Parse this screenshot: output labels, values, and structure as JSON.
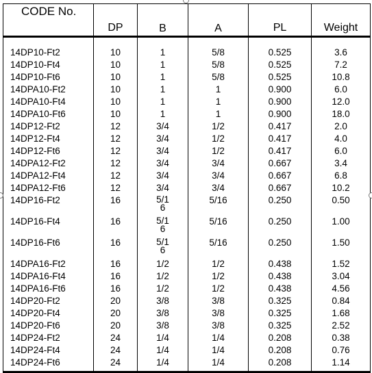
{
  "headers": {
    "code": "CODE No.",
    "dp": "DP",
    "b": "B",
    "a": "A",
    "pl": "PL",
    "weight": "Weight"
  },
  "rows": [
    {
      "code": "14DP10-Ft2",
      "dp": "10",
      "b": "1",
      "a": "5/8",
      "pl": "0.525",
      "weight": "3.6"
    },
    {
      "code": "14DP10-Ft4",
      "dp": "10",
      "b": "1",
      "a": "5/8",
      "pl": "0.525",
      "weight": "7.2"
    },
    {
      "code": "14DP10-Ft6",
      "dp": "10",
      "b": "1",
      "a": "5/8",
      "pl": "0.525",
      "weight": "10.8"
    },
    {
      "code": "14DPA10-Ft2",
      "dp": "10",
      "b": "1",
      "a": "1",
      "pl": "0.900",
      "weight": "6.0"
    },
    {
      "code": "14DPA10-Ft4",
      "dp": "10",
      "b": "1",
      "a": "1",
      "pl": "0.900",
      "weight": "12.0"
    },
    {
      "code": "14DPA10-Ft6",
      "dp": "10",
      "b": "1",
      "a": "1",
      "pl": "0.900",
      "weight": "18.0"
    },
    {
      "code": "14DP12-Ft2",
      "dp": "12",
      "b": "3/4",
      "a": "1/2",
      "pl": "0.417",
      "weight": "2.0"
    },
    {
      "code": "14DP12-Ft4",
      "dp": "12",
      "b": "3/4",
      "a": "1/2",
      "pl": "0.417",
      "weight": "4.0"
    },
    {
      "code": "14DP12-Ft6",
      "dp": "12",
      "b": "3/4",
      "a": "1/2",
      "pl": "0.417",
      "weight": "6.0"
    },
    {
      "code": "14DPA12-Ft2",
      "dp": "12",
      "b": "3/4",
      "a": "3/4",
      "pl": "0.667",
      "weight": "3.4"
    },
    {
      "code": "14DPA12-Ft4",
      "dp": "12",
      "b": "3/4",
      "a": "3/4",
      "pl": "0.667",
      "weight": "6.8"
    },
    {
      "code": "14DPA12-Ft6",
      "dp": "12",
      "b": "3/4",
      "a": "3/4",
      "pl": "0.667",
      "weight": "10.2"
    },
    {
      "code": "14DP16-Ft2",
      "dp": "16",
      "b": "5/1\n6",
      "a": "5/16",
      "pl": "0.250",
      "weight": "0.50"
    },
    {
      "code": "14DP16-Ft4",
      "dp": "16",
      "b": "5/1\n6",
      "a": "5/16",
      "pl": "0.250",
      "weight": "1.00"
    },
    {
      "code": "14DP16-Ft6",
      "dp": "16",
      "b": "5/1\n6",
      "a": "5/16",
      "pl": "0.250",
      "weight": "1.50"
    },
    {
      "code": "14DPA16-Ft2",
      "dp": "16",
      "b": "1/2",
      "a": "1/2",
      "pl": "0.438",
      "weight": "1.52"
    },
    {
      "code": "14DPA16-Ft4",
      "dp": "16",
      "b": "1/2",
      "a": "1/2",
      "pl": "0.438",
      "weight": "3.04"
    },
    {
      "code": "14DPA16-Ft6",
      "dp": "16",
      "b": "1/2",
      "a": "1/2",
      "pl": "0.438",
      "weight": "4.56"
    },
    {
      "code": "14DP20-Ft2",
      "dp": "20",
      "b": "3/8",
      "a": "3/8",
      "pl": "0.325",
      "weight": "0.84"
    },
    {
      "code": "14DP20-Ft4",
      "dp": "20",
      "b": "3/8",
      "a": "3/8",
      "pl": "0.325",
      "weight": "1.68"
    },
    {
      "code": "14DP20-Ft6",
      "dp": "20",
      "b": "3/8",
      "a": "3/8",
      "pl": "0.325",
      "weight": "2.52"
    },
    {
      "code": "14DP24-Ft2",
      "dp": "24",
      "b": "1/4",
      "a": "1/4",
      "pl": "0.208",
      "weight": "0.38"
    },
    {
      "code": "14DP24-Ft4",
      "dp": "24",
      "b": "1/4",
      "a": "1/4",
      "pl": "0.208",
      "weight": "0.76"
    },
    {
      "code": "14DP24-Ft6",
      "dp": "24",
      "b": "1/4",
      "a": "1/4",
      "pl": "0.208",
      "weight": "1.14"
    }
  ]
}
